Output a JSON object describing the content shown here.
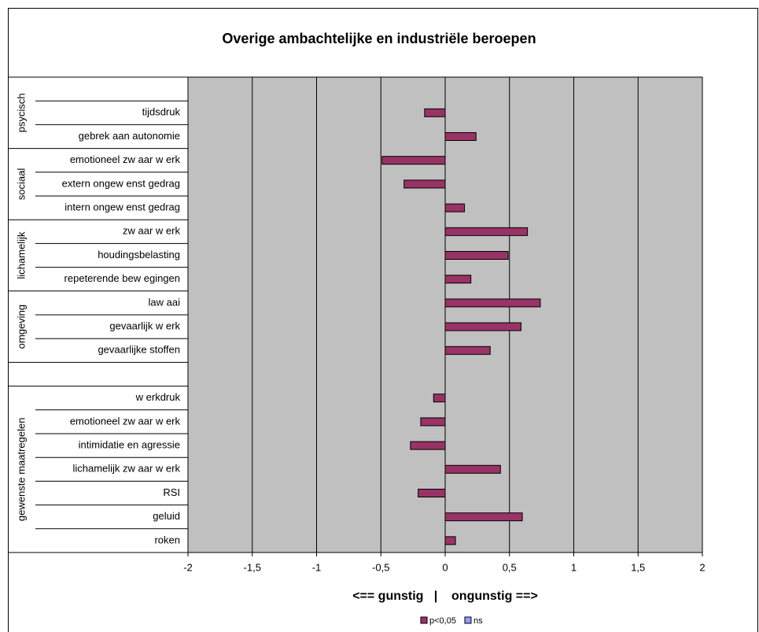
{
  "chart_data": {
    "type": "bar",
    "orientation": "horizontal",
    "title": "Overige ambachtelijke en industriële beroepen",
    "x_label": "<== gunstig   |    ongunstig ==>",
    "groups": [
      {
        "name": "psycisch",
        "categories": [
          null,
          "tijdsdruk",
          "gebrek aan autonomie"
        ]
      },
      {
        "name": "sociaal",
        "categories": [
          "emotioneel zw aar w erk",
          "extern ongew enst gedrag",
          "intern ongew enst gedrag"
        ]
      },
      {
        "name": "lichamelijk",
        "categories": [
          "zw aar w erk",
          "houdingsbelasting",
          "repeterende bew egingen"
        ]
      },
      {
        "name": "omgeving",
        "categories": [
          "law aai",
          "gevaarlijk w erk",
          "gevaarlijke stoffen"
        ]
      },
      {
        "name": null,
        "categories": [
          null
        ]
      },
      {
        "name": "gewenste maatregelen",
        "categories": [
          "w erkdruk",
          "emotioneel zw aar w erk",
          "intimidatie en agressie",
          "lichamelijk zw aar w erk",
          "RSI",
          "geluid",
          "roken"
        ]
      }
    ],
    "series": [
      {
        "name": "p<0,05",
        "color": "#993366",
        "values": [
          null,
          -0.16,
          0.24,
          -0.49,
          -0.32,
          0.15,
          0.64,
          0.49,
          0.2,
          0.74,
          0.59,
          0.35,
          null,
          -0.09,
          -0.19,
          -0.27,
          0.43,
          -0.21,
          0.6,
          0.08
        ]
      },
      {
        "name": "ns",
        "color": "#9999ff",
        "values": [
          null,
          null,
          null,
          null,
          null,
          null,
          null,
          null,
          null,
          null,
          null,
          null,
          null,
          null,
          null,
          null,
          null,
          null,
          null,
          null
        ]
      }
    ],
    "xlim": [
      -2,
      2
    ],
    "xticks": [
      -2,
      {
        "value": -1.5,
        "label": "-1,5"
      },
      -1,
      {
        "value": -0.5,
        "label": "-0,5"
      },
      0,
      {
        "value": 0.5,
        "label": "0,5"
      },
      1,
      {
        "value": 1.5,
        "label": "1,5"
      },
      2
    ],
    "grid": true,
    "legend": "bottom",
    "plot_background": "#c0c0c0"
  }
}
